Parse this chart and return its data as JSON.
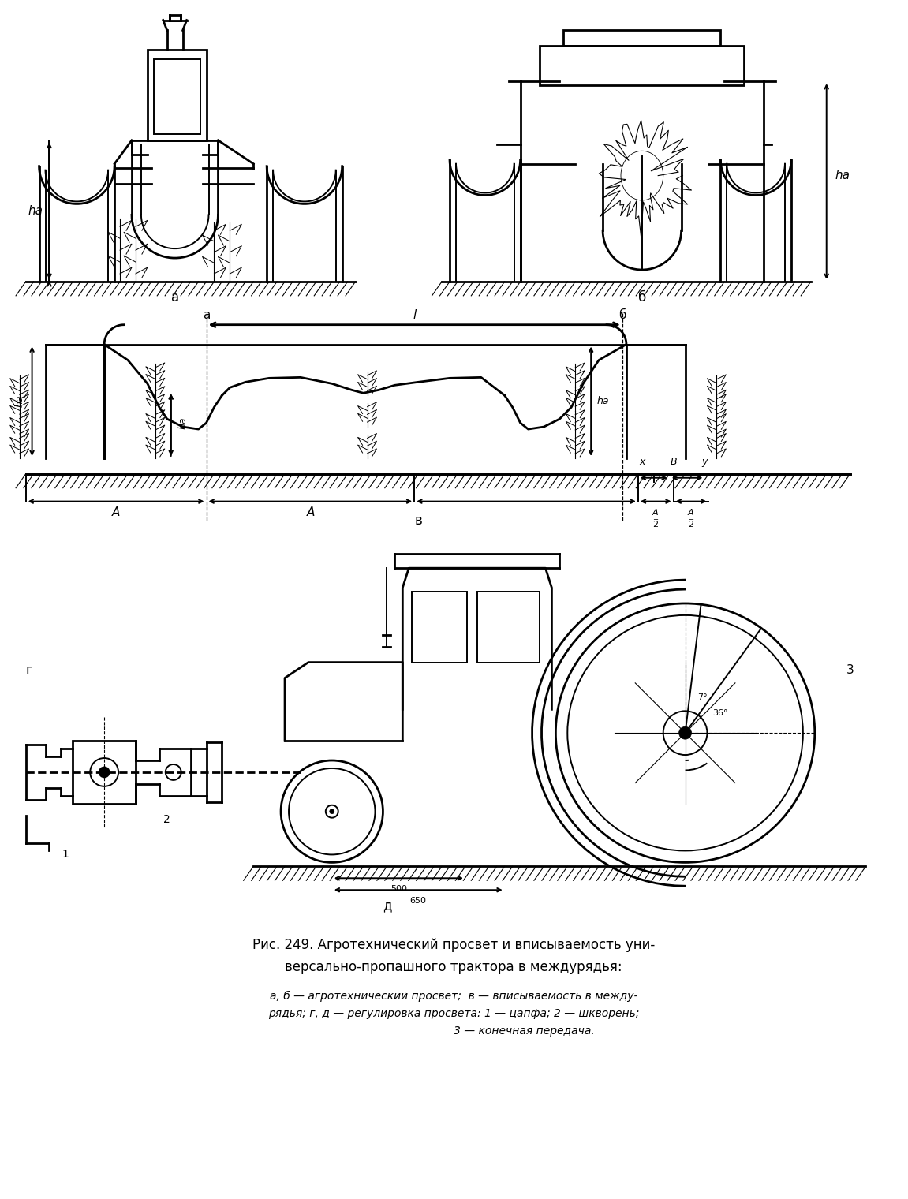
{
  "background_color": "#ffffff",
  "line_color": "#000000",
  "label_a": "а",
  "label_b": "б",
  "label_v": "в",
  "label_g": "г",
  "label_d": "д",
  "label_ha": "hа",
  "label_l": "l",
  "label_A": "A",
  "label_B": "B",
  "label_x": "x",
  "label_y": "y",
  "label_1": "1",
  "label_2": "2",
  "label_3": "3",
  "label_7deg": "7°",
  "label_36deg": "36°",
  "label_500": "500",
  "label_650": "650",
  "fig_width": 11.51,
  "fig_height": 15.2,
  "dpi": 100
}
